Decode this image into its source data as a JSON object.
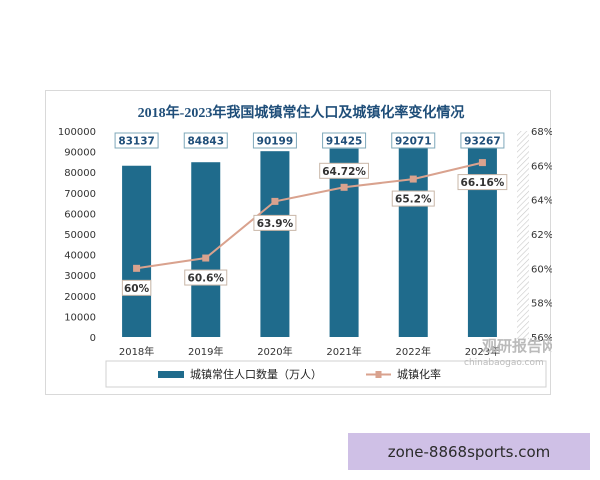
{
  "chart_data": {
    "type": "bar+line",
    "title": "2018年-2023年我国城镇常住人口及城镇化率变化情况",
    "categories": [
      "2018年",
      "2019年",
      "2020年",
      "2021年",
      "2022年",
      "2023年"
    ],
    "series": [
      {
        "name": "城镇常住人口数量（万人）",
        "type": "bar",
        "axis": "left",
        "values": [
          83137,
          84843,
          90199,
          91425,
          92071,
          93267
        ],
        "value_labels": [
          "83137",
          "84843",
          "90199",
          "91425",
          "92071",
          "93267"
        ],
        "color": "#1f6b8c"
      },
      {
        "name": "城镇化率",
        "type": "line",
        "axis": "right",
        "values": [
          60,
          60.6,
          63.9,
          64.72,
          65.2,
          66.16
        ],
        "value_labels": [
          "60%",
          "60.6%",
          "63.9%",
          "64.72%",
          "65.2%",
          "66.16%"
        ],
        "color": "#d9a28e"
      }
    ],
    "y_left": {
      "range": [
        0,
        100000
      ],
      "ticks": [
        "0",
        "10000",
        "20000",
        "30000",
        "40000",
        "50000",
        "60000",
        "70000",
        "80000",
        "90000",
        "100000"
      ]
    },
    "y_right": {
      "range": [
        56,
        68
      ],
      "ticks": [
        "56%",
        "58%",
        "60%",
        "62%",
        "64%",
        "66%",
        "68%"
      ]
    },
    "grid": false,
    "legend_position": "bottom"
  },
  "watermark": {
    "brand": "观研报告网",
    "url": "chinabaogao.com"
  },
  "overlay_text": "zone-8868sports.com"
}
